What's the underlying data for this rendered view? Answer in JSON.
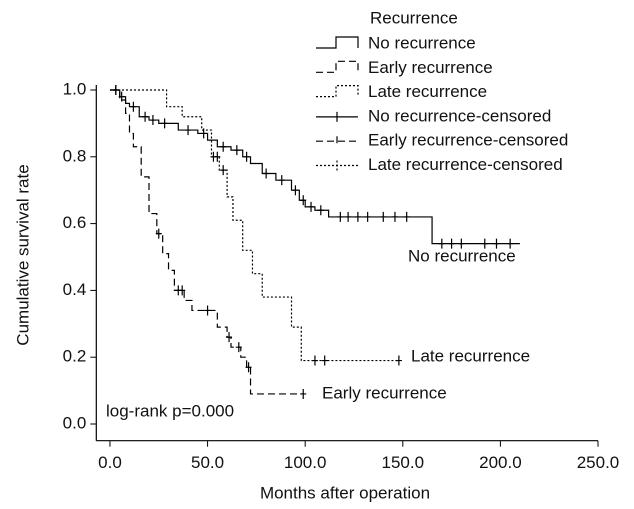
{
  "chart_data": {
    "type": "survival",
    "xlabel": "Months after operation",
    "ylabel": "Cumulative survival rate",
    "xlim": [
      -7,
      250
    ],
    "ylim": [
      -0.05,
      1.05
    ],
    "xticks": [
      {
        "value": 0,
        "label": "0.0"
      },
      {
        "value": 50,
        "label": "50.0"
      },
      {
        "value": 100,
        "label": "100.0"
      },
      {
        "value": 150,
        "label": "150.0"
      },
      {
        "value": 200,
        "label": "200.0"
      },
      {
        "value": 250,
        "label": "250.0"
      }
    ],
    "yticks": [
      {
        "value": 0,
        "label": "0.0"
      },
      0.2,
      0.4,
      0.6,
      0.8,
      {
        "value": 1,
        "label": "1.0"
      }
    ],
    "legend_title": "Recurrence",
    "legend_position": "upper right",
    "annotations": [
      "No recurrence",
      "Late recurrence",
      "Early recurrence",
      "log-rank p=0.000"
    ],
    "series": [
      {
        "name": "No recurrence",
        "kind": "step",
        "style": "solid",
        "color": "#000000",
        "x": [
          0,
          5,
          8,
          10,
          15,
          20,
          25,
          35,
          45,
          50,
          55,
          62,
          68,
          72,
          78,
          85,
          93,
          97,
          100,
          105,
          112,
          165,
          210
        ],
        "values": [
          1.0,
          0.98,
          0.96,
          0.95,
          0.92,
          0.91,
          0.9,
          0.88,
          0.87,
          0.85,
          0.83,
          0.82,
          0.8,
          0.78,
          0.75,
          0.73,
          0.7,
          0.67,
          0.65,
          0.64,
          0.62,
          0.54,
          0.54
        ]
      },
      {
        "name": "Early recurrence",
        "kind": "step",
        "style": "dashed",
        "color": "#000000",
        "x": [
          0,
          5,
          8,
          10,
          12,
          16,
          20,
          24,
          27,
          30,
          33,
          38,
          42,
          55,
          60,
          62,
          67,
          70,
          72,
          99
        ],
        "values": [
          1.0,
          0.97,
          0.93,
          0.87,
          0.83,
          0.74,
          0.63,
          0.57,
          0.51,
          0.46,
          0.4,
          0.37,
          0.34,
          0.29,
          0.26,
          0.23,
          0.2,
          0.17,
          0.09,
          0.09
        ]
      },
      {
        "name": "Late recurrence",
        "kind": "step",
        "style": "dotted",
        "color": "#000000",
        "x": [
          0,
          29,
          37,
          47,
          52,
          56,
          60,
          63,
          68,
          73,
          78,
          93,
          98,
          148
        ],
        "values": [
          1.0,
          0.95,
          0.92,
          0.88,
          0.8,
          0.76,
          0.68,
          0.61,
          0.52,
          0.45,
          0.38,
          0.29,
          0.19,
          0.19
        ]
      },
      {
        "name": "No recurrence-censored",
        "kind": "censored",
        "style": "solid",
        "color": "#000000",
        "x": [
          3,
          6,
          12,
          18,
          22,
          28,
          40,
          48,
          58,
          65,
          70,
          80,
          88,
          95,
          99,
          103,
          108,
          118,
          122,
          127,
          132,
          140,
          146,
          152,
          170,
          175,
          180,
          192,
          198,
          205
        ],
        "values": [
          1.0,
          0.98,
          0.95,
          0.92,
          0.91,
          0.9,
          0.88,
          0.87,
          0.83,
          0.82,
          0.8,
          0.75,
          0.73,
          0.7,
          0.67,
          0.65,
          0.64,
          0.62,
          0.62,
          0.62,
          0.62,
          0.62,
          0.62,
          0.62,
          0.54,
          0.54,
          0.54,
          0.54,
          0.54,
          0.54
        ]
      },
      {
        "name": "Early recurrence-censored",
        "kind": "censored",
        "style": "dashed",
        "color": "#000000",
        "x": [
          3,
          25,
          35,
          37,
          50,
          61,
          66,
          71,
          99
        ],
        "values": [
          1.0,
          0.57,
          0.4,
          0.4,
          0.34,
          0.26,
          0.23,
          0.17,
          0.09
        ]
      },
      {
        "name": "Late recurrence-censored",
        "kind": "censored",
        "style": "dotted",
        "color": "#000000",
        "x": [
          53,
          55,
          58,
          105,
          110,
          148
        ],
        "values": [
          0.8,
          0.8,
          0.76,
          0.19,
          0.19,
          0.19
        ]
      }
    ]
  }
}
